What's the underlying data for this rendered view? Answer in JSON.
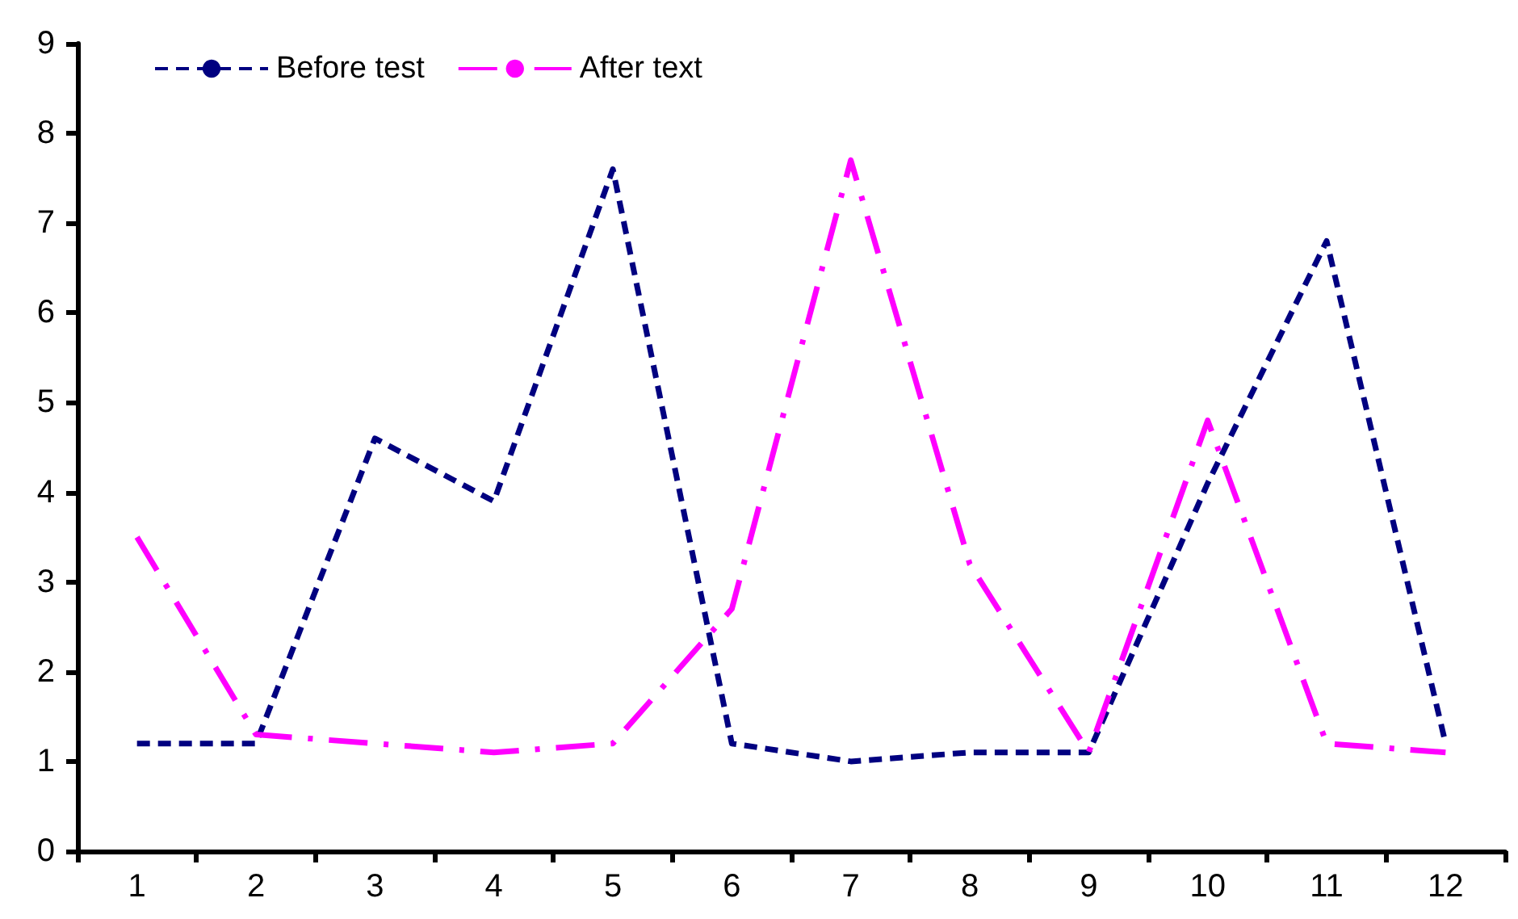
{
  "chart_data": {
    "type": "line",
    "categories": [
      "1",
      "2",
      "3",
      "4",
      "5",
      "6",
      "7",
      "8",
      "9",
      "10",
      "11",
      "12"
    ],
    "series": [
      {
        "name": "Before test",
        "color": "#000080",
        "line_style": "dashed",
        "values": [
          1.2,
          1.2,
          4.6,
          3.9,
          7.6,
          1.2,
          1.0,
          1.1,
          1.1,
          4.1,
          6.8,
          1.2
        ]
      },
      {
        "name": "After text",
        "color": "#ff00ff",
        "line_style": "dashdot",
        "values": [
          3.5,
          1.3,
          1.2,
          1.1,
          1.2,
          2.7,
          7.7,
          3.2,
          1.1,
          4.8,
          1.2,
          1.1
        ]
      }
    ],
    "ylim": [
      0,
      9
    ],
    "yticks": [
      0,
      1,
      2,
      3,
      4,
      5,
      6,
      7,
      8,
      9
    ],
    "grid": false,
    "legend": "top left",
    "marker": "none"
  }
}
